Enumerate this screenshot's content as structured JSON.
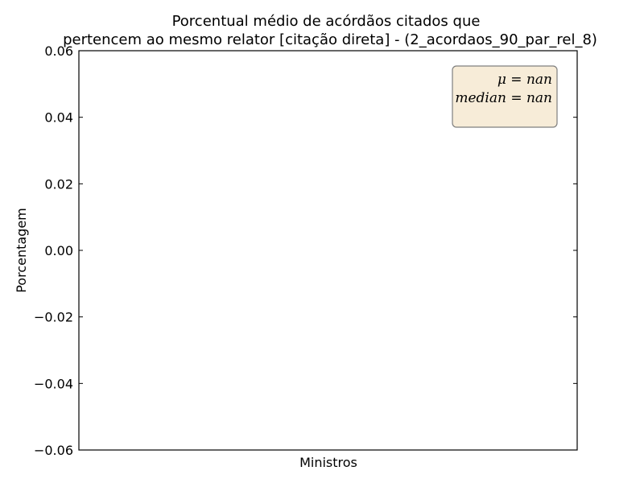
{
  "chart_data": {
    "type": "bar",
    "title_line1": "Porcentual médio de acórdãos citados que",
    "title_line2": "pertencem ao mesmo relator [citação direta] - (2_acordaos_90_par_rel_8)",
    "xlabel": "Ministros",
    "ylabel": "Porcentagem",
    "categories": [],
    "values": [],
    "ylim": [
      -0.06,
      0.06
    ],
    "yticks": [
      -0.06,
      -0.04,
      -0.02,
      0.0,
      0.02,
      0.04,
      0.06
    ],
    "ytick_labels": [
      "−0.06",
      "−0.04",
      "−0.02",
      "0.00",
      "0.02",
      "0.04",
      "0.06"
    ],
    "grid": false,
    "stats_box": {
      "mean_text": "μ = nan",
      "median_text": "median = nan",
      "placement": "top-right",
      "facecolor": "#f7ecd8",
      "edgecolor": "#7f7f7f"
    }
  }
}
